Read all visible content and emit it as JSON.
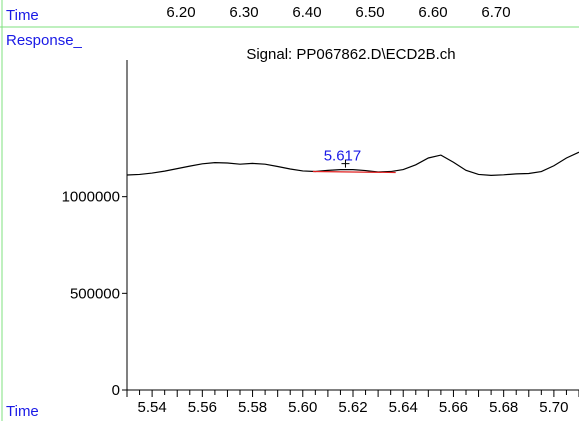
{
  "header": {
    "time_label": "Time",
    "response_label": "Response_",
    "top_ticks": [
      "6.20",
      "6.30",
      "6.40",
      "6.50",
      "6.60",
      "6.70"
    ]
  },
  "footer": {
    "time_label": "Time"
  },
  "colors": {
    "divider": "#7fe07f",
    "label": "#1a1ae6",
    "trace": "#000000",
    "baseline": "#e02020",
    "peak_label": "#1a1ae6"
  },
  "chart_data": {
    "type": "line",
    "title": "Signal: PP067862.D\\ECD2B.ch",
    "xlabel": "Time",
    "ylabel": "Response_",
    "xlim": [
      5.53,
      5.71
    ],
    "ylim": [
      0,
      1500000
    ],
    "x_ticks": [
      "5.54",
      "5.56",
      "5.58",
      "5.60",
      "5.62",
      "5.64",
      "5.66",
      "5.68",
      "5.70"
    ],
    "y_ticks": [
      "1000000",
      "500000",
      "0"
    ],
    "y_tick_values": [
      1000000,
      500000,
      0
    ],
    "series": [
      {
        "x": [
          5.53,
          5.535,
          5.54,
          5.545,
          5.55,
          5.555,
          5.56,
          5.565,
          5.57,
          5.575,
          5.58,
          5.585,
          5.59,
          5.595,
          5.6,
          5.605,
          5.61,
          5.615,
          5.62,
          5.625,
          5.63,
          5.635,
          5.64,
          5.645,
          5.65,
          5.655,
          5.66,
          5.665,
          5.67,
          5.675,
          5.68,
          5.685,
          5.69,
          5.695,
          5.7,
          5.705,
          5.71
        ],
        "y": [
          1112000,
          1115000,
          1122000,
          1132000,
          1145000,
          1158000,
          1170000,
          1176000,
          1174000,
          1168000,
          1172000,
          1168000,
          1156000,
          1143000,
          1133000,
          1130000,
          1136000,
          1140000,
          1140000,
          1135000,
          1128000,
          1130000,
          1140000,
          1165000,
          1200000,
          1215000,
          1178000,
          1136000,
          1115000,
          1110000,
          1113000,
          1118000,
          1120000,
          1130000,
          1160000,
          1200000,
          1230000
        ]
      }
    ],
    "annotations": [
      {
        "text": "5.617",
        "x": 5.617,
        "y": 1140000
      }
    ],
    "baseline": {
      "x": [
        5.604,
        5.637
      ],
      "y": [
        1130000,
        1125000
      ]
    }
  }
}
